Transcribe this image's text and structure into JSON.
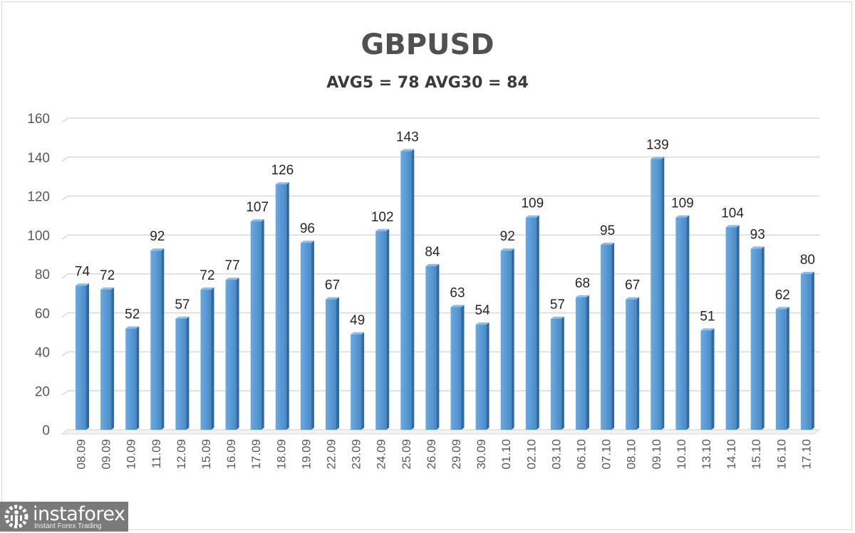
{
  "title": "GBPUSD",
  "subtitle": "AVG5 = 78 AVG30 = 84",
  "logo": {
    "name": "instaforex",
    "tagline": "Instant Forex Trading"
  },
  "colors": {
    "bar": "#5b9bd5",
    "bar_dark": "#2e6aa6",
    "bar_light": "#8cbde8",
    "grid": "#d9d9d9",
    "axis_text": "#595959",
    "label_text": "#262626"
  },
  "chart_data": {
    "type": "bar",
    "title": "GBPUSD",
    "subtitle": "AVG5 = 78 AVG30 = 84",
    "xlabel": "",
    "ylabel": "",
    "ylim": [
      0,
      160
    ],
    "yticks": [
      0,
      20,
      40,
      60,
      80,
      100,
      120,
      140,
      160
    ],
    "grid": true,
    "legend": null,
    "categories": [
      "08.09",
      "09.09",
      "10.09",
      "11.09",
      "12.09",
      "15.09",
      "16.09",
      "17.09",
      "18.09",
      "19.09",
      "22.09",
      "23.09",
      "24.09",
      "25.09",
      "26.09",
      "29.09",
      "30.09",
      "01.10",
      "02.10",
      "03.10",
      "06.10",
      "07.10",
      "08.10",
      "09.10",
      "10.10",
      "13.10",
      "14.10",
      "15.10",
      "16.10",
      "17.10"
    ],
    "values": [
      74,
      72,
      52,
      92,
      57,
      72,
      77,
      107,
      126,
      96,
      67,
      49,
      102,
      143,
      84,
      63,
      54,
      92,
      109,
      57,
      68,
      95,
      67,
      139,
      109,
      51,
      104,
      93,
      62,
      80
    ],
    "data_labels": true
  }
}
